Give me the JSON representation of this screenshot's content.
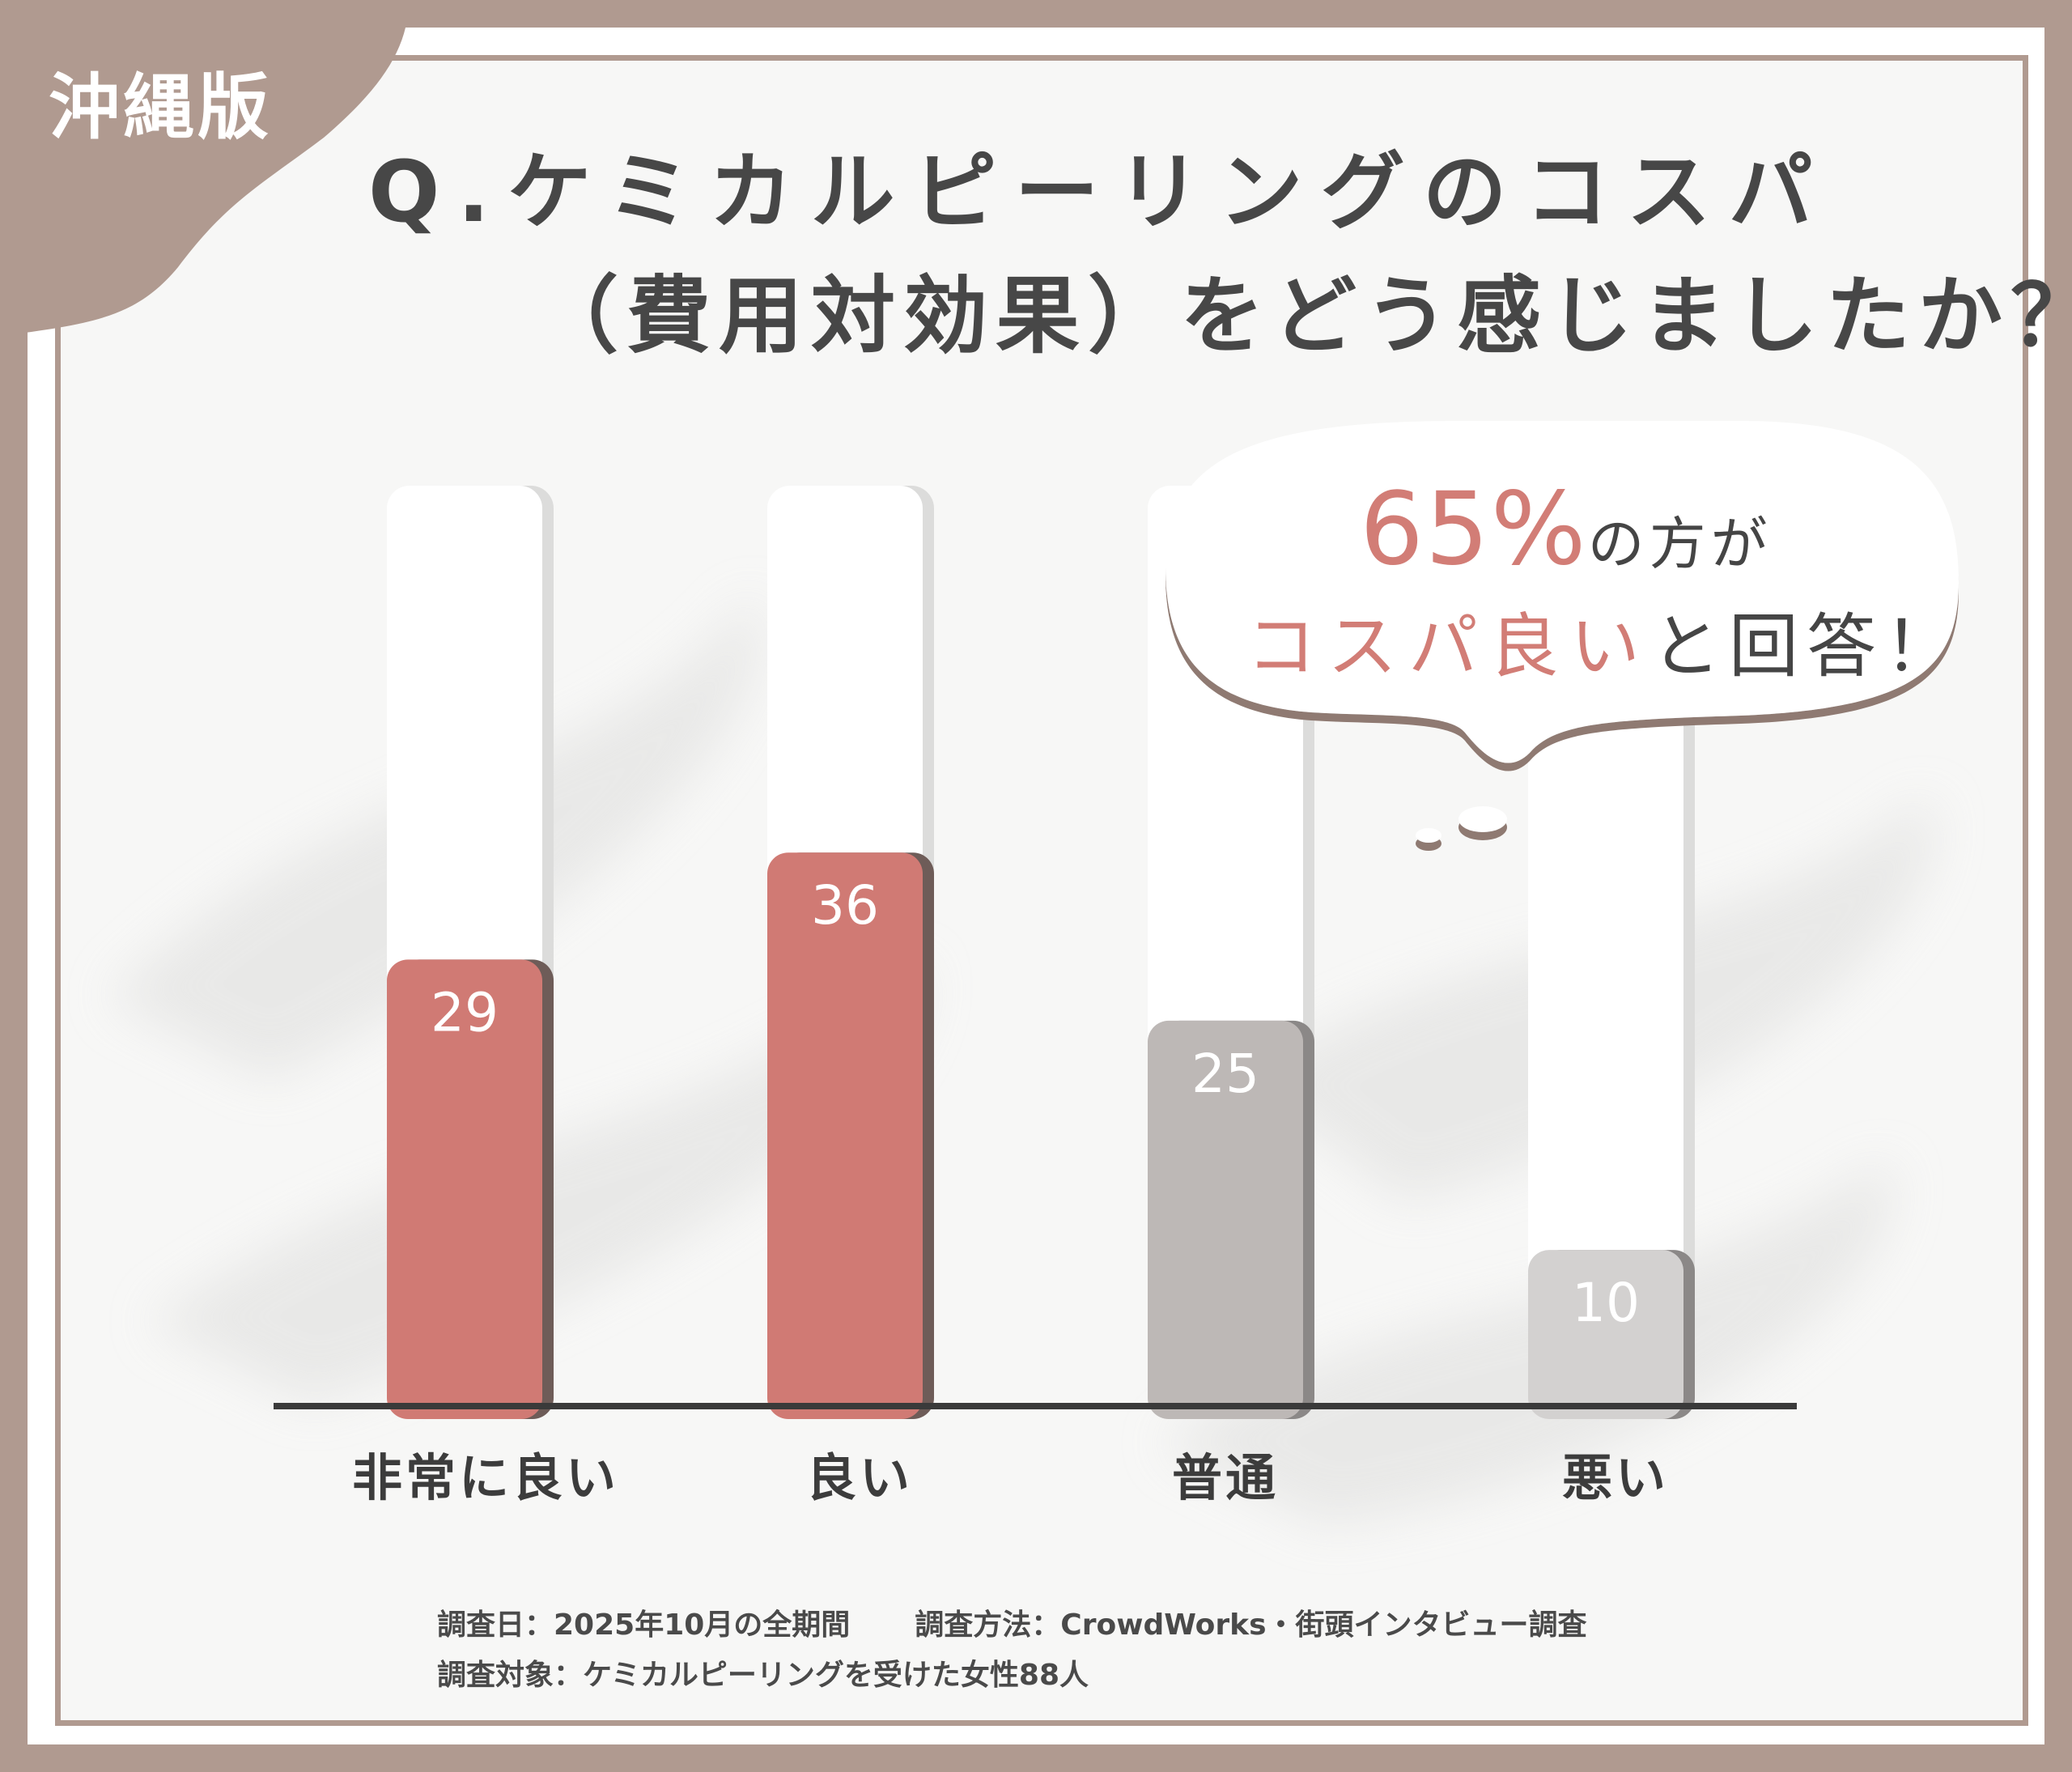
{
  "badge": {
    "region": "沖縄版"
  },
  "title": {
    "line1": "Q.ケミカルピーリングのコスパ",
    "line2": "（費用対効果）をどう感じましたか？"
  },
  "callout": {
    "percent": "65%",
    "line1_rest": "の方が",
    "highlight": "コスパ良い",
    "line2_rest": "と回答！"
  },
  "colors": {
    "frame": "#b09a90",
    "bar_positive": "#d07a74",
    "bar_neutral": "#bdb8b6",
    "bar_negative": "#d3d1d0",
    "text_dark": "#474747",
    "accent_text": "#d27d76"
  },
  "footer": {
    "date": "調査日：2025年10月の全期間",
    "method": "調査方法：CrowdWorks・街頭インタビュー調査",
    "target": "調査対象：ケミカルピーリングを受けた女性88人"
  },
  "chart_data": {
    "type": "bar",
    "categories": [
      "非常に良い",
      "良い",
      "普通",
      "悪い"
    ],
    "values": [
      29,
      36,
      25,
      10
    ],
    "bar_colors": [
      "#d07a74",
      "#d07a74",
      "#bdb8b6",
      "#d3d1d0"
    ],
    "title": "Q.ケミカルピーリングのコスパ（費用対効果）をどう感じましたか？",
    "xlabel": "",
    "ylabel": "",
    "ylim": [
      0,
      60
    ],
    "grid": false,
    "legend": "none"
  }
}
